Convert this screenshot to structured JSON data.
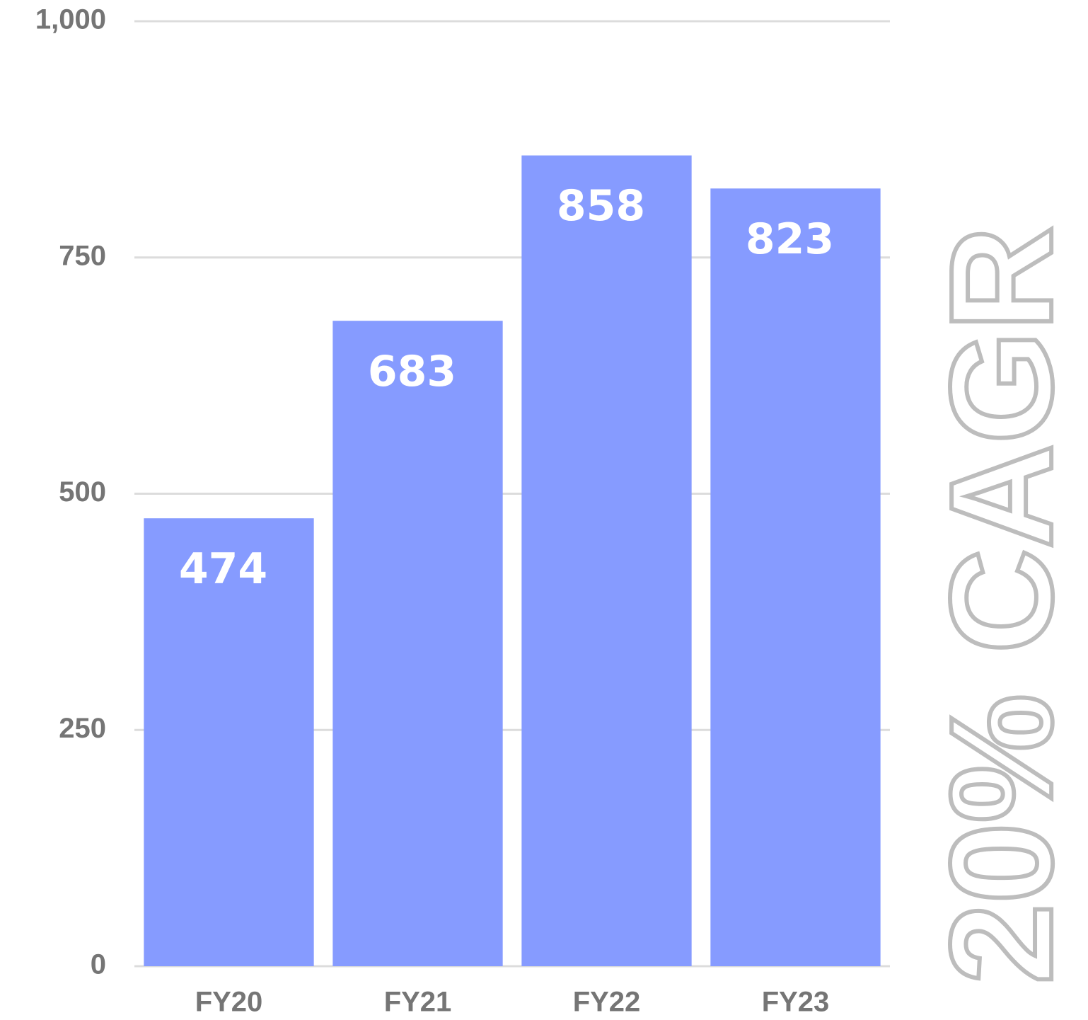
{
  "chart_data": {
    "type": "bar",
    "annotation": "20% CAGR",
    "categories": [
      "FY20",
      "FY21",
      "FY22",
      "FY23"
    ],
    "values": [
      474,
      683,
      858,
      823
    ],
    "color": "#869bff",
    "ylim": [
      0,
      1000
    ],
    "yticks": [
      0,
      250,
      500,
      750,
      {
        "value": 1000,
        "label": "1,000"
      }
    ],
    "grid": true
  }
}
